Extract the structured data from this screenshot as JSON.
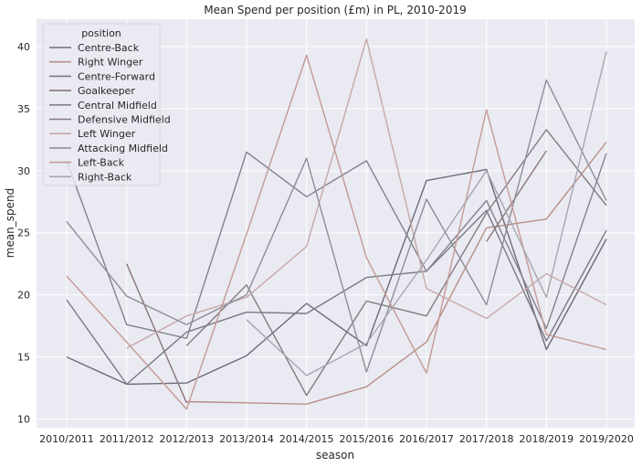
{
  "chart_data": {
    "type": "line",
    "title": "Mean Spend per position (£m) in PL, 2010-2019",
    "xlabel": "season",
    "ylabel": "mean_spend",
    "x": [
      "2010/2011",
      "2011/2012",
      "2012/2013",
      "2013/2014",
      "2014/2015",
      "2015/2016",
      "2016/2017",
      "2017/2018",
      "2018/2019",
      "2019/2020"
    ],
    "yticks": [
      10,
      15,
      20,
      25,
      30,
      35,
      40
    ],
    "ylim": [
      9.3,
      42.2
    ],
    "grid": true,
    "background": "#eaeaf2",
    "legend": {
      "title": "position",
      "placement": "top-left"
    },
    "series": [
      {
        "name": "Centre-Back",
        "color": "#6b6b7a",
        "values": [
          15.0,
          12.8,
          12.9,
          15.1,
          19.3,
          15.9,
          29.2,
          30.1,
          15.6,
          24.5
        ]
      },
      {
        "name": "Right Winger",
        "color": "#b88f86",
        "values": [
          null,
          null,
          11.4,
          11.3,
          11.2,
          12.6,
          16.2,
          25.4,
          26.1,
          32.3
        ]
      },
      {
        "name": "Centre-Forward",
        "color": "#7a7a86",
        "values": [
          19.6,
          12.8,
          17.0,
          18.6,
          18.5,
          21.4,
          21.9,
          26.8,
          16.3,
          25.2
        ]
      },
      {
        "name": "Goalkeeper",
        "color": "#8a7579",
        "values": [
          null,
          22.5,
          11.3,
          null,
          null,
          null,
          null,
          24.3,
          31.6,
          null
        ]
      },
      {
        "name": "Central Midfield",
        "color": "#82828e",
        "values": [
          30.8,
          17.6,
          16.5,
          31.5,
          27.9,
          30.8,
          21.9,
          27.6,
          17.3,
          31.4
        ]
      },
      {
        "name": "Defensive Midfield",
        "color": "#857a80",
        "values": [
          null,
          null,
          15.9,
          20.8,
          11.9,
          19.5,
          18.3,
          26.6,
          33.3,
          27.2
        ]
      },
      {
        "name": "Left Winger",
        "color": "#c7a8a8",
        "values": [
          null,
          15.7,
          18.3,
          19.8,
          23.9,
          40.6,
          20.5,
          18.1,
          21.7,
          19.2
        ]
      },
      {
        "name": "Attacking Midfield",
        "color": "#8e8e98",
        "values": [
          25.9,
          19.9,
          17.6,
          20.0,
          31.0,
          13.8,
          27.7,
          19.2,
          37.3,
          27.6
        ]
      },
      {
        "name": "Left-Back",
        "color": "#c49a94",
        "values": [
          21.5,
          16.2,
          10.8,
          24.9,
          39.3,
          23.0,
          13.7,
          34.9,
          16.8,
          15.6
        ]
      },
      {
        "name": "Right-Back",
        "color": "#a6a6b0",
        "values": [
          null,
          null,
          null,
          18.0,
          13.5,
          16.1,
          22.8,
          30.0,
          19.8,
          39.6
        ]
      }
    ]
  }
}
